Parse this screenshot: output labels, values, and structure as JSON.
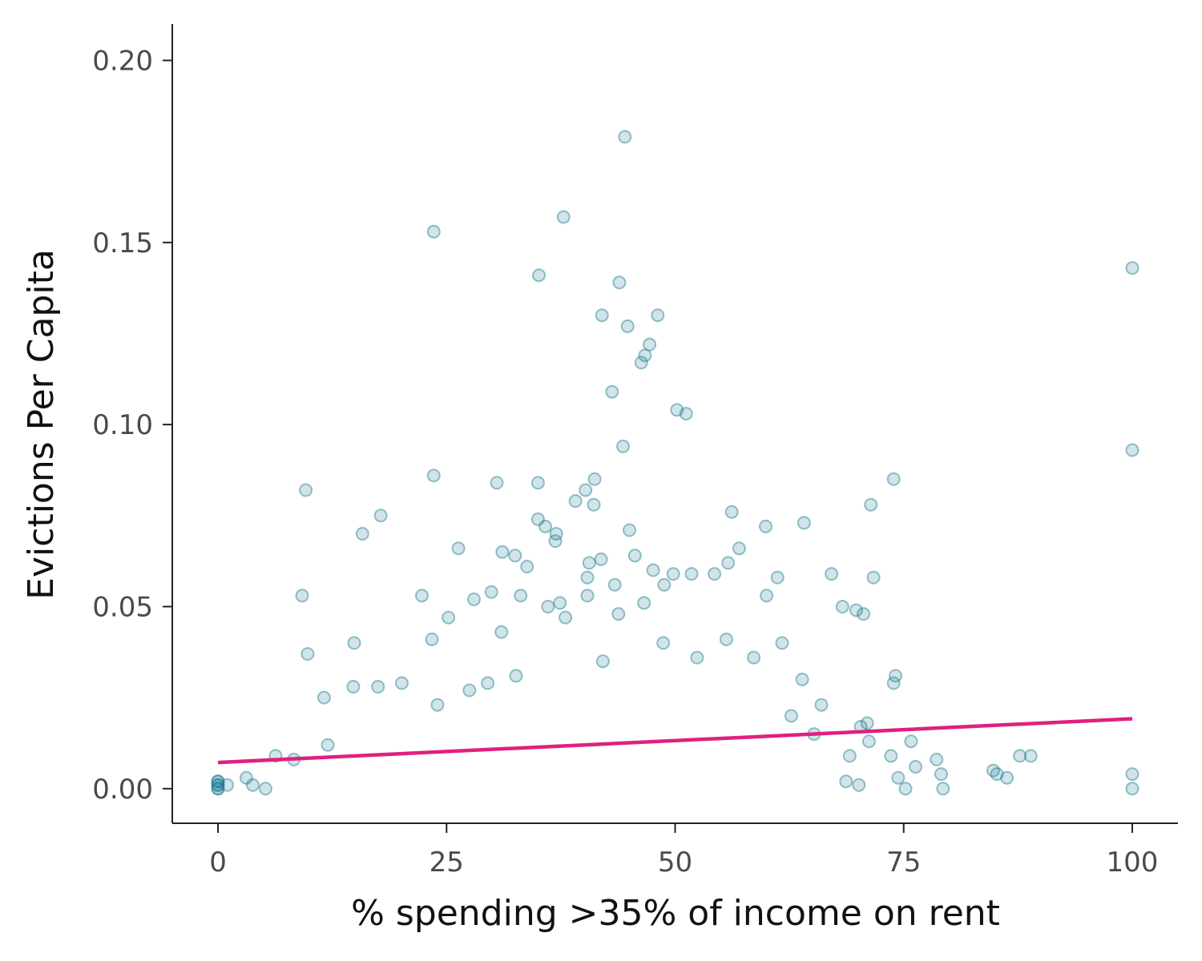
{
  "chart_data": {
    "type": "scatter",
    "title": "",
    "xlabel": "% spending >35% of income on rent",
    "ylabel": "Evictions Per Capita",
    "xlim": [
      -5,
      105
    ],
    "ylim": [
      -0.0095,
      0.21
    ],
    "x_ticks": [
      0,
      25,
      50,
      75,
      100
    ],
    "x_tick_labels": [
      "0",
      "25",
      "50",
      "75",
      "100"
    ],
    "y_ticks": [
      0,
      0.05,
      0.1,
      0.15,
      0.2
    ],
    "y_tick_labels": [
      "0.00",
      "0.05",
      "0.10",
      "0.15",
      "0.20"
    ],
    "grid": false,
    "legend": "none",
    "colors": {
      "points": "#1a7a8f",
      "trend": "#e0207f",
      "axis": "#222222"
    },
    "series": [
      {
        "kind": "points",
        "points": [
          [
            44.5,
            0.179
          ],
          [
            37.8,
            0.157
          ],
          [
            23.6,
            0.153
          ],
          [
            100,
            0.143
          ],
          [
            35.1,
            0.141
          ],
          [
            43.9,
            0.139
          ],
          [
            42.0,
            0.13
          ],
          [
            48.1,
            0.13
          ],
          [
            44.8,
            0.127
          ],
          [
            47.2,
            0.122
          ],
          [
            46.7,
            0.119
          ],
          [
            46.3,
            0.117
          ],
          [
            43.1,
            0.109
          ],
          [
            50.2,
            0.104
          ],
          [
            51.2,
            0.103
          ],
          [
            44.3,
            0.094
          ],
          [
            100,
            0.093
          ],
          [
            23.6,
            0.086
          ],
          [
            41.2,
            0.085
          ],
          [
            73.9,
            0.085
          ],
          [
            30.5,
            0.084
          ],
          [
            35.0,
            0.084
          ],
          [
            40.2,
            0.082
          ],
          [
            9.6,
            0.082
          ],
          [
            39.1,
            0.079
          ],
          [
            41.1,
            0.078
          ],
          [
            71.4,
            0.078
          ],
          [
            56.2,
            0.076
          ],
          [
            17.8,
            0.075
          ],
          [
            35.0,
            0.074
          ],
          [
            64.1,
            0.073
          ],
          [
            35.8,
            0.072
          ],
          [
            45.0,
            0.071
          ],
          [
            59.9,
            0.072
          ],
          [
            15.8,
            0.07
          ],
          [
            37.0,
            0.07
          ],
          [
            36.9,
            0.068
          ],
          [
            26.3,
            0.066
          ],
          [
            31.1,
            0.065
          ],
          [
            57.0,
            0.066
          ],
          [
            45.6,
            0.064
          ],
          [
            32.5,
            0.064
          ],
          [
            40.6,
            0.062
          ],
          [
            41.9,
            0.063
          ],
          [
            33.8,
            0.061
          ],
          [
            55.8,
            0.062
          ],
          [
            47.6,
            0.06
          ],
          [
            54.3,
            0.059
          ],
          [
            49.8,
            0.059
          ],
          [
            51.8,
            0.059
          ],
          [
            67.1,
            0.059
          ],
          [
            71.7,
            0.058
          ],
          [
            61.2,
            0.058
          ],
          [
            40.4,
            0.058
          ],
          [
            43.4,
            0.056
          ],
          [
            48.8,
            0.056
          ],
          [
            29.9,
            0.054
          ],
          [
            60.0,
            0.053
          ],
          [
            9.2,
            0.053
          ],
          [
            22.3,
            0.053
          ],
          [
            33.1,
            0.053
          ],
          [
            36.1,
            0.05
          ],
          [
            68.3,
            0.05
          ],
          [
            46.6,
            0.051
          ],
          [
            28.0,
            0.052
          ],
          [
            37.4,
            0.051
          ],
          [
            40.4,
            0.053
          ],
          [
            38.0,
            0.047
          ],
          [
            43.8,
            0.048
          ],
          [
            69.8,
            0.049
          ],
          [
            70.6,
            0.048
          ],
          [
            25.2,
            0.047
          ],
          [
            31.0,
            0.043
          ],
          [
            14.9,
            0.04
          ],
          [
            23.4,
            0.041
          ],
          [
            9.8,
            0.037
          ],
          [
            29.5,
            0.029
          ],
          [
            20.1,
            0.029
          ],
          [
            24.0,
            0.023
          ],
          [
            27.5,
            0.027
          ],
          [
            32.6,
            0.031
          ],
          [
            42.1,
            0.035
          ],
          [
            48.7,
            0.04
          ],
          [
            52.4,
            0.036
          ],
          [
            55.6,
            0.041
          ],
          [
            58.6,
            0.036
          ],
          [
            61.7,
            0.04
          ],
          [
            63.9,
            0.03
          ],
          [
            66.0,
            0.023
          ],
          [
            73.9,
            0.029
          ],
          [
            74.1,
            0.031
          ],
          [
            11.6,
            0.025
          ],
          [
            14.8,
            0.028
          ],
          [
            17.5,
            0.028
          ],
          [
            12.0,
            0.012
          ],
          [
            6.3,
            0.009
          ],
          [
            3.1,
            0.003
          ],
          [
            3.8,
            0.001
          ],
          [
            5.2,
            0.0
          ],
          [
            8.3,
            0.008
          ],
          [
            78.6,
            0.008
          ],
          [
            79.1,
            0.004
          ],
          [
            79.3,
            0.0
          ],
          [
            84.8,
            0.005
          ],
          [
            85.2,
            0.004
          ],
          [
            86.3,
            0.003
          ],
          [
            87.7,
            0.009
          ],
          [
            88.9,
            0.009
          ],
          [
            100,
            0.004
          ],
          [
            100,
            0.0
          ],
          [
            76.3,
            0.006
          ],
          [
            75.2,
            0.0
          ],
          [
            74.4,
            0.003
          ],
          [
            75.8,
            0.013
          ],
          [
            73.6,
            0.009
          ],
          [
            71.2,
            0.013
          ],
          [
            71.0,
            0.018
          ],
          [
            70.3,
            0.017
          ],
          [
            69.1,
            0.009
          ],
          [
            65.2,
            0.015
          ],
          [
            62.7,
            0.02
          ],
          [
            68.7,
            0.002
          ],
          [
            70.1,
            0.001
          ],
          [
            0,
            0.0
          ],
          [
            0,
            0.001
          ],
          [
            0,
            0.002
          ],
          [
            0,
            0.001
          ],
          [
            0,
            0.0
          ],
          [
            0,
            0.002
          ],
          [
            1,
            0.001
          ]
        ]
      },
      {
        "kind": "trend",
        "name": "",
        "x": [
          0,
          100
        ],
        "y": [
          0.0072,
          0.0192
        ]
      }
    ]
  }
}
